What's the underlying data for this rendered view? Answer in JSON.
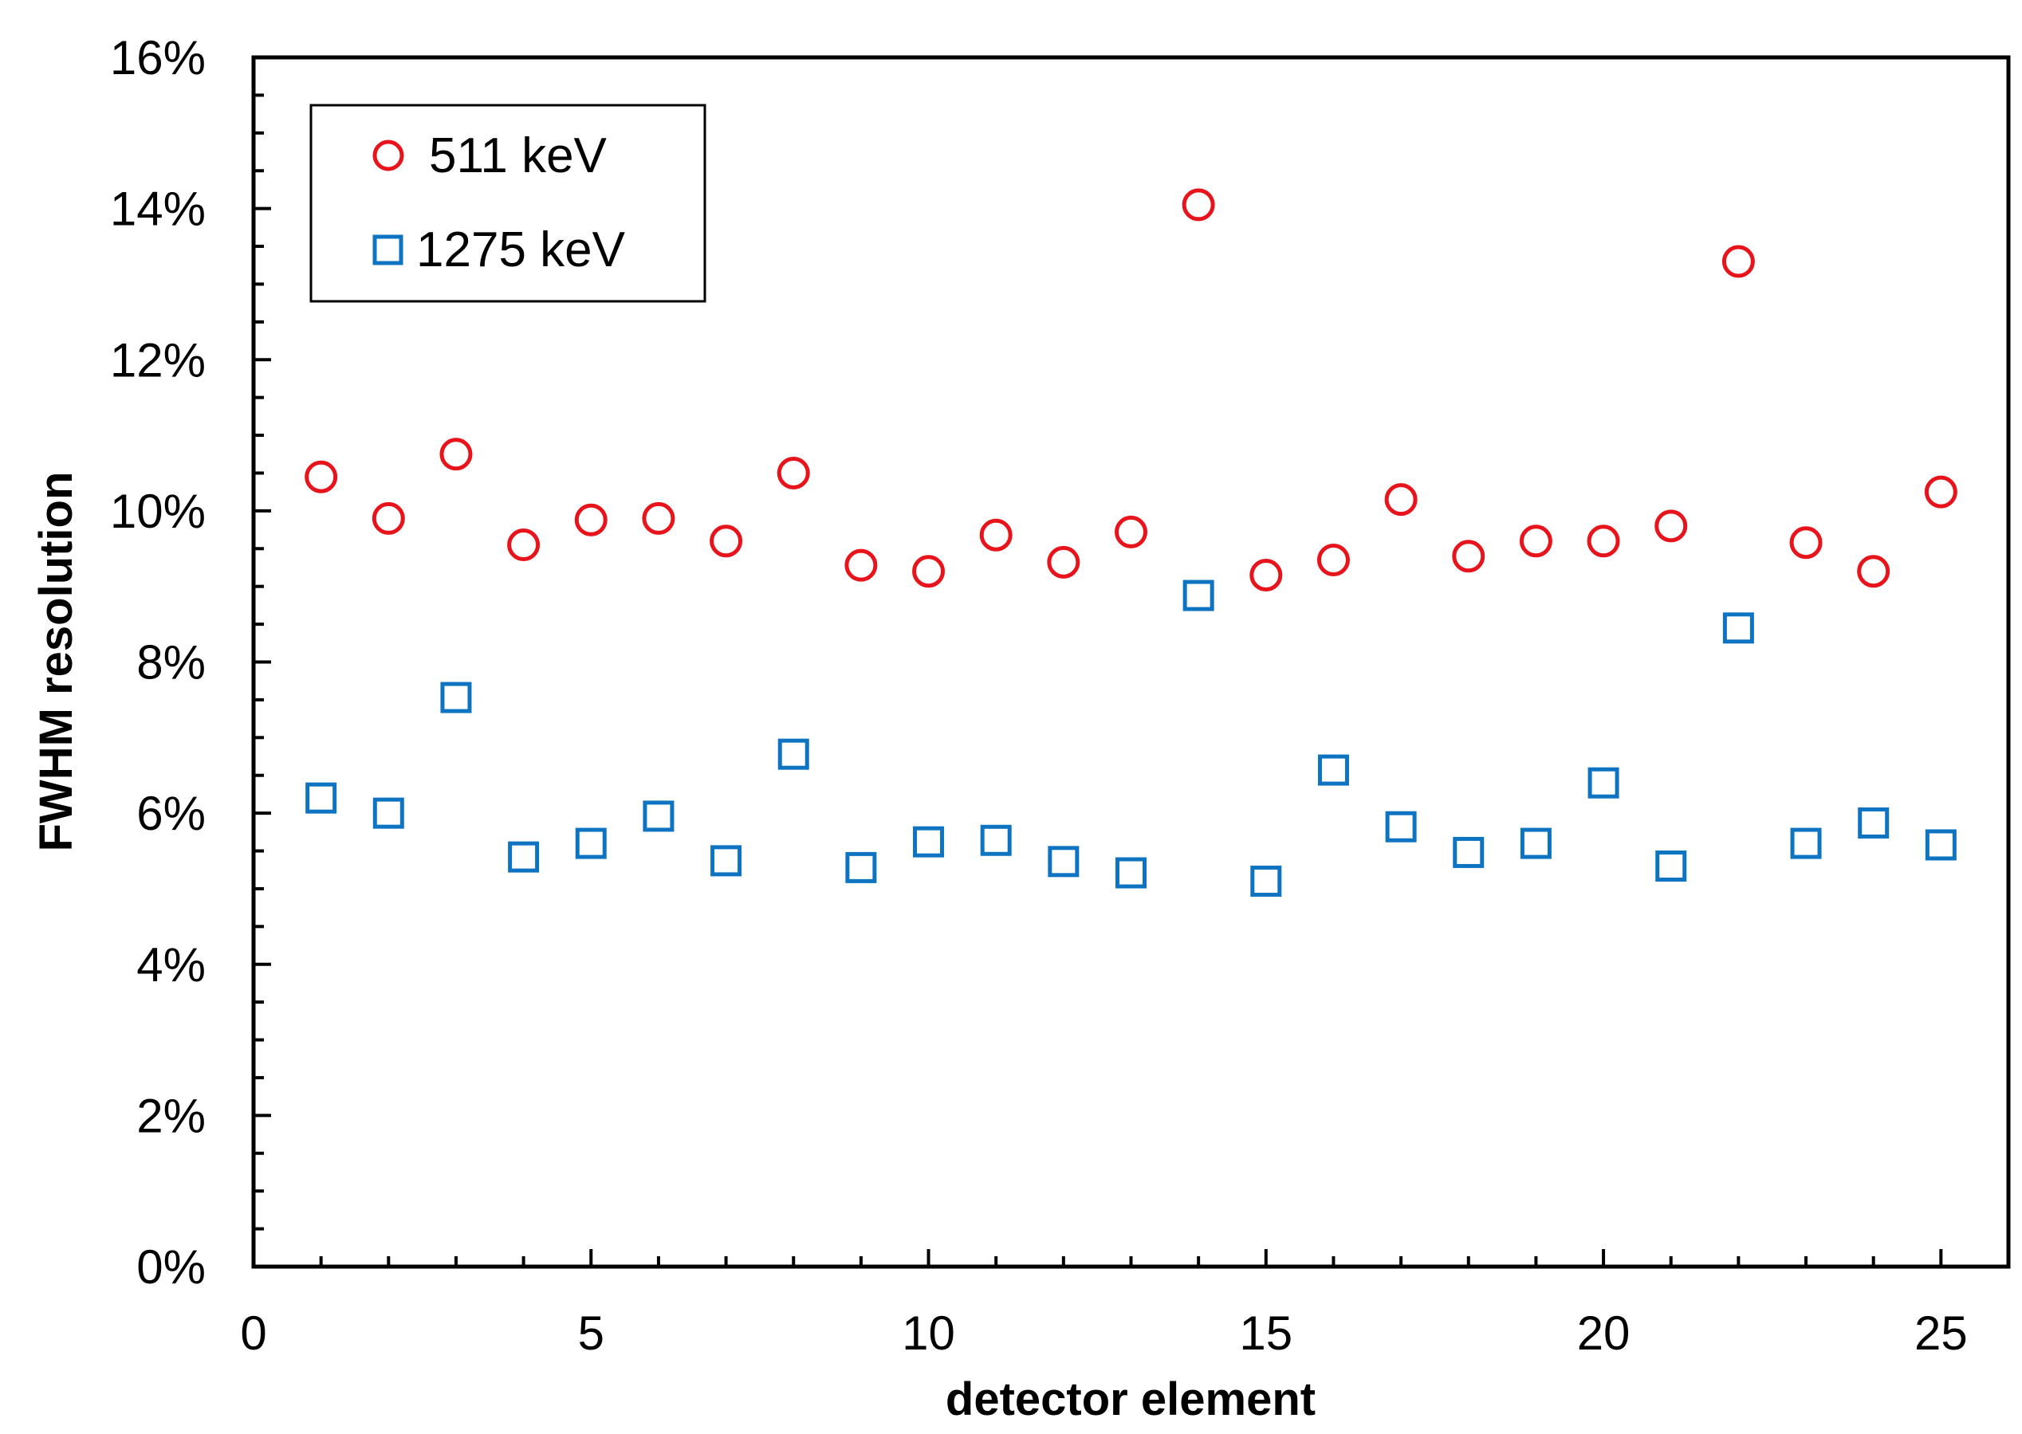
{
  "chart_data": {
    "type": "scatter",
    "title": "",
    "xlabel": "detector element",
    "ylabel": "FWHM resolution",
    "xlim": [
      0,
      26
    ],
    "ylim": [
      0,
      16
    ],
    "x_ticks": [
      "0",
      "5",
      "10",
      "15",
      "20",
      "25"
    ],
    "y_ticks": [
      "0%",
      "2%",
      "4%",
      "6%",
      "8%",
      "10%",
      "12%",
      "14%",
      "16%"
    ],
    "grid": false,
    "legend_position": "top-left",
    "x": [
      1,
      2,
      3,
      4,
      5,
      6,
      7,
      8,
      9,
      10,
      11,
      12,
      13,
      14,
      15,
      16,
      17,
      18,
      19,
      20,
      21,
      22,
      23,
      24,
      25
    ],
    "series": [
      {
        "name": "511 keV",
        "marker": "circle",
        "color": "#e8141b",
        "values": [
          10.45,
          9.9,
          10.75,
          9.55,
          9.88,
          9.9,
          9.6,
          10.5,
          9.28,
          9.2,
          9.68,
          9.32,
          9.72,
          14.05,
          9.15,
          9.35,
          10.15,
          9.4,
          9.6,
          9.6,
          9.8,
          13.3,
          9.58,
          9.2,
          10.25
        ]
      },
      {
        "name": "1275 keV",
        "marker": "square",
        "color": "#0e74c2",
        "values": [
          6.2,
          6.0,
          7.53,
          5.42,
          5.6,
          5.96,
          5.37,
          6.78,
          5.28,
          5.62,
          5.64,
          5.36,
          5.21,
          8.88,
          5.1,
          6.57,
          5.82,
          5.48,
          5.6,
          6.4,
          5.3,
          8.45,
          5.6,
          5.87,
          5.58
        ]
      }
    ]
  }
}
